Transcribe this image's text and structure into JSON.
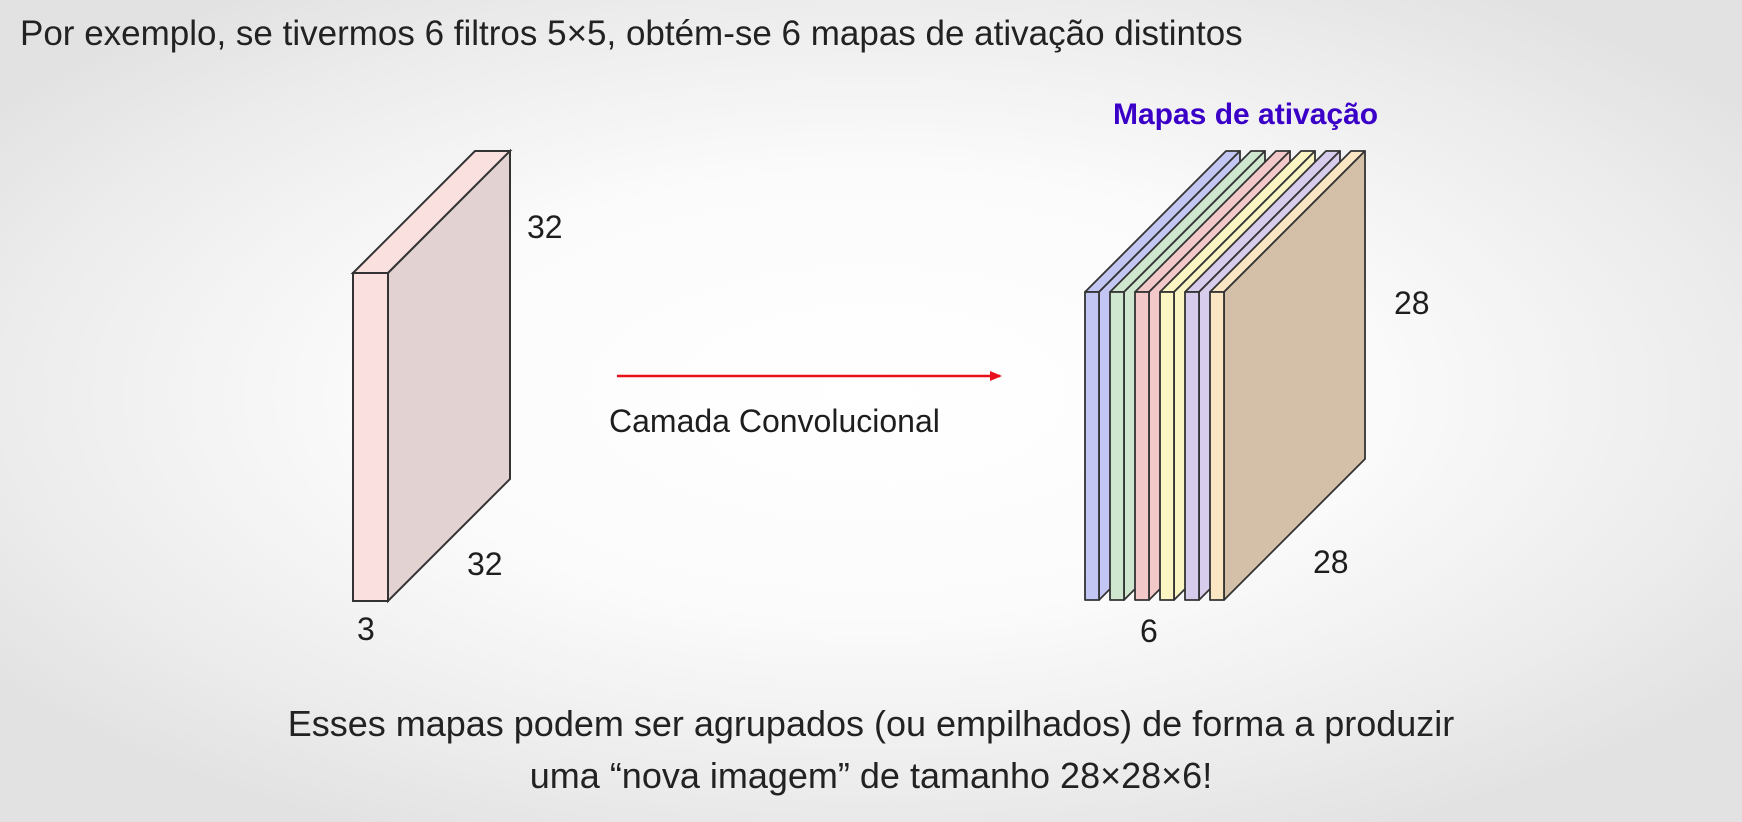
{
  "heading": "Por exemplo, se tivermos 6 filtros 5×5, obtém-se 6 mapas de ativação distintos",
  "input_volume": {
    "height_label": "32",
    "width_label": "32",
    "depth_label": "3"
  },
  "arrow": {
    "label": "Camada Convolucional",
    "color": "#e8111b"
  },
  "activation_maps": {
    "title": "Mapas de ativação",
    "title_color": "#3a00c8",
    "height_label": "28",
    "width_label": "28",
    "depth_label": "6",
    "layer_colors": [
      "#c3c6f2",
      "#cfe6cf",
      "#f3c8c8",
      "#fbf5c4",
      "#d7ccec",
      "#fbe6c4"
    ],
    "front_color": "#d4c0a8"
  },
  "input_colors": {
    "edge": "#fbe0e0",
    "face": "#e3d2d2"
  },
  "caption": {
    "line1": "Esses mapas podem ser agrupados (ou empilhados) de forma a produzir",
    "line2": "uma “nova imagem” de tamanho 28×28×6!"
  }
}
